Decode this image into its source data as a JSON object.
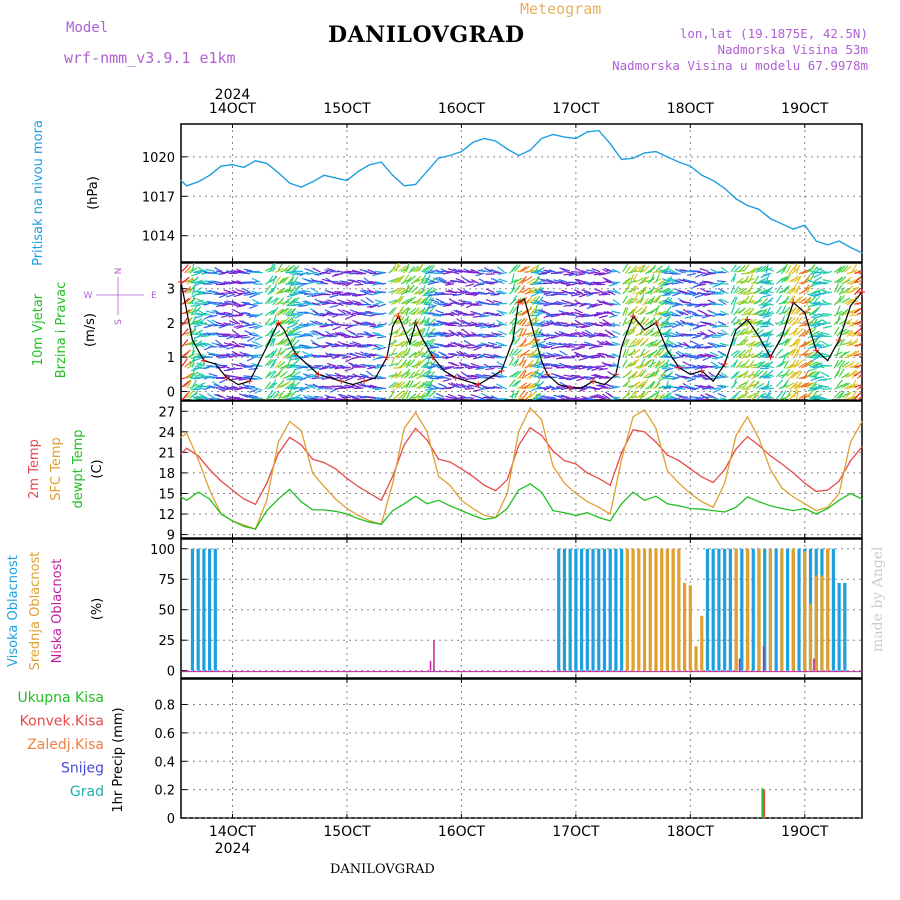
{
  "header": {
    "model_label": "Model",
    "model_name": "wrf-nmm_v3.9.1  e1km",
    "location": "DANILOVGRAD",
    "meteogram": "Meteogram",
    "coords": "lon,lat (19.1875E, 42.5N)",
    "elevation": "Nadmorska Visina 53m",
    "model_elevation": "Nadmorska Visina u modelu 67.9978m",
    "footer": "DANILOVGRAD",
    "watermark": "made by Angel",
    "year": "2024"
  },
  "colors": {
    "pressure": "#1e9ee0",
    "temp2m": "#e84a4a",
    "sfc": "#e0a030",
    "dewpt": "#22c022",
    "high_cloud": "#1ea0e0",
    "mid_cloud": "#e0a030",
    "low_cloud": "#c020a0",
    "precip_total": "#22c022",
    "precip_conv": "#e84a4a",
    "wind_speed": "#000000",
    "label_purple": "#b060d0",
    "label_orange": "#e8b060"
  },
  "chart_data": [
    {
      "id": "pressure",
      "type": "line",
      "ylabel_left": "Pritisak na nivou mora",
      "ylabel": "(hPa)",
      "yticks": [
        1014,
        1017,
        1020
      ],
      "ylim": [
        1012,
        1022.5
      ],
      "x_ticks": [
        "14OCT",
        "15OCT",
        "16OCT",
        "17OCT",
        "18OCT",
        "19OCT"
      ],
      "x_range_days": [
        13.55,
        19.5
      ],
      "series": [
        {
          "key": "pressure",
          "x": [
            13.55,
            13.6,
            13.7,
            13.8,
            13.9,
            14.0,
            14.1,
            14.2,
            14.3,
            14.4,
            14.5,
            14.6,
            14.7,
            14.8,
            14.9,
            15.0,
            15.1,
            15.2,
            15.3,
            15.4,
            15.5,
            15.6,
            15.7,
            15.8,
            15.9,
            16.0,
            16.1,
            16.2,
            16.3,
            16.4,
            16.5,
            16.6,
            16.7,
            16.8,
            16.9,
            17.0,
            17.1,
            17.2,
            17.3,
            17.4,
            17.5,
            17.6,
            17.7,
            17.8,
            17.9,
            18.0,
            18.1,
            18.2,
            18.3,
            18.4,
            18.5,
            18.6,
            18.7,
            18.8,
            18.9,
            19.0,
            19.1,
            19.2,
            19.3,
            19.4,
            19.5
          ],
          "y": [
            1018.2,
            1017.8,
            1018.1,
            1018.6,
            1019.3,
            1019.4,
            1019.2,
            1019.7,
            1019.5,
            1018.8,
            1018.0,
            1017.7,
            1018.1,
            1018.6,
            1018.4,
            1018.2,
            1018.9,
            1019.4,
            1019.6,
            1018.6,
            1017.8,
            1017.9,
            1018.9,
            1019.9,
            1020.1,
            1020.4,
            1021.1,
            1021.4,
            1021.2,
            1020.6,
            1020.1,
            1020.5,
            1021.4,
            1021.7,
            1021.5,
            1021.4,
            1021.9,
            1022.0,
            1021.0,
            1019.8,
            1019.9,
            1020.3,
            1020.4,
            1020.0,
            1019.6,
            1019.3,
            1018.6,
            1018.2,
            1017.6,
            1016.8,
            1016.3,
            1016.0,
            1015.3,
            1014.9,
            1014.5,
            1014.8,
            1013.6,
            1013.3,
            1013.6,
            1013.1,
            1012.7
          ]
        }
      ]
    },
    {
      "id": "wind",
      "type": "line",
      "ylabel_left": "10m Vjetar",
      "ylabel_left2": "Brzina i Pravac",
      "ylabel": "(m/s)",
      "compass": {
        "n": "N",
        "w": "W",
        "e": "E",
        "s": "S"
      },
      "yticks": [
        0,
        1,
        2,
        3
      ],
      "ylim": [
        -0.25,
        3.75
      ],
      "series": [
        {
          "key": "wind_speed",
          "x": [
            13.55,
            13.65,
            13.75,
            13.85,
            13.95,
            14.05,
            14.15,
            14.3,
            14.4,
            14.45,
            14.55,
            14.65,
            14.75,
            14.85,
            14.95,
            15.05,
            15.15,
            15.25,
            15.35,
            15.4,
            15.45,
            15.55,
            15.6,
            15.65,
            15.75,
            15.85,
            15.95,
            16.05,
            16.15,
            16.25,
            16.35,
            16.45,
            16.5,
            16.55,
            16.65,
            16.7,
            16.75,
            16.85,
            16.95,
            17.05,
            17.15,
            17.25,
            17.35,
            17.4,
            17.5,
            17.6,
            17.7,
            17.8,
            17.9,
            18.0,
            18.1,
            18.2,
            18.3,
            18.4,
            18.5,
            18.6,
            18.7,
            18.8,
            18.9,
            19.0,
            19.1,
            19.2,
            19.3,
            19.4,
            19.5
          ],
          "y": [
            3.2,
            1.5,
            0.9,
            0.8,
            0.4,
            0.2,
            0.3,
            1.3,
            2.0,
            1.8,
            1.1,
            0.8,
            0.5,
            0.4,
            0.3,
            0.2,
            0.3,
            0.4,
            1.0,
            1.9,
            2.2,
            1.4,
            2.0,
            1.6,
            1.0,
            0.6,
            0.4,
            0.3,
            0.2,
            0.4,
            0.6,
            1.5,
            2.6,
            2.7,
            1.5,
            0.9,
            0.5,
            0.2,
            0.1,
            0.1,
            0.3,
            0.2,
            0.5,
            1.3,
            2.2,
            1.8,
            2.0,
            1.2,
            0.7,
            0.5,
            0.6,
            0.3,
            0.8,
            1.8,
            2.1,
            1.6,
            1.0,
            1.6,
            2.6,
            2.3,
            1.2,
            0.9,
            1.5,
            2.5,
            2.9
          ]
        }
      ]
    },
    {
      "id": "temperature",
      "type": "line",
      "ylabel_left": "2m Temp",
      "ylabel_left2": "SFC Temp",
      "ylabel_left3": "dewpt Temp",
      "ylabel": "(C)",
      "yticks": [
        9,
        12,
        15,
        18,
        21,
        24,
        27
      ],
      "ylim": [
        8.5,
        28.5
      ],
      "series": [
        {
          "key": "temp2m",
          "x": [
            13.55,
            13.6,
            13.7,
            13.8,
            13.9,
            14.0,
            14.1,
            14.2,
            14.3,
            14.4,
            14.5,
            14.6,
            14.7,
            14.8,
            14.9,
            15.0,
            15.1,
            15.2,
            15.3,
            15.4,
            15.5,
            15.6,
            15.7,
            15.8,
            15.9,
            16.0,
            16.1,
            16.2,
            16.3,
            16.4,
            16.5,
            16.6,
            16.7,
            16.8,
            16.9,
            17.0,
            17.1,
            17.2,
            17.3,
            17.4,
            17.5,
            17.6,
            17.7,
            17.8,
            17.9,
            18.0,
            18.1,
            18.2,
            18.3,
            18.4,
            18.5,
            18.6,
            18.7,
            18.8,
            18.9,
            19.0,
            19.1,
            19.2,
            19.3,
            19.4,
            19.5
          ],
          "y": [
            20.8,
            21.6,
            20.5,
            18.5,
            16.8,
            15.5,
            14.2,
            13.4,
            16.5,
            20.8,
            23.2,
            22.1,
            20.0,
            19.5,
            18.6,
            17.2,
            16.0,
            15.0,
            14.0,
            17.5,
            22.1,
            24.5,
            22.8,
            20.0,
            19.6,
            18.6,
            17.5,
            16.2,
            15.4,
            17.0,
            22.0,
            24.6,
            23.5,
            21.2,
            19.8,
            19.3,
            18.0,
            17.2,
            16.2,
            21.0,
            24.3,
            24.0,
            22.5,
            20.6,
            19.8,
            18.6,
            17.4,
            16.6,
            18.5,
            21.5,
            23.3,
            22.0,
            20.5,
            19.3,
            18.0,
            16.5,
            15.3,
            15.5,
            16.8,
            19.8,
            21.8
          ]
        },
        {
          "key": "sfc",
          "x": [
            13.55,
            13.6,
            13.7,
            13.8,
            13.9,
            14.0,
            14.1,
            14.2,
            14.3,
            14.4,
            14.5,
            14.6,
            14.7,
            14.8,
            14.9,
            15.0,
            15.1,
            15.2,
            15.3,
            15.4,
            15.5,
            15.6,
            15.7,
            15.8,
            15.9,
            16.0,
            16.1,
            16.2,
            16.3,
            16.4,
            16.5,
            16.6,
            16.7,
            16.8,
            16.9,
            17.0,
            17.1,
            17.2,
            17.3,
            17.4,
            17.5,
            17.6,
            17.7,
            17.8,
            17.9,
            18.0,
            18.1,
            18.2,
            18.3,
            18.4,
            18.5,
            18.6,
            18.7,
            18.8,
            18.9,
            19.0,
            19.1,
            19.2,
            19.3,
            19.4,
            19.5
          ],
          "y": [
            23.2,
            23.8,
            20.0,
            15.5,
            12.0,
            11.0,
            10.4,
            9.8,
            14.0,
            22.5,
            25.5,
            24.2,
            18.0,
            16.0,
            14.2,
            12.8,
            11.8,
            11.0,
            10.5,
            16.5,
            24.5,
            26.8,
            24.0,
            17.5,
            16.2,
            14.0,
            12.8,
            11.8,
            11.5,
            15.0,
            24.0,
            27.5,
            25.8,
            19.0,
            16.5,
            15.0,
            13.8,
            13.0,
            12.0,
            20.0,
            26.2,
            27.2,
            24.5,
            18.3,
            16.5,
            15.0,
            13.8,
            13.0,
            16.5,
            23.5,
            26.2,
            23.0,
            18.5,
            15.8,
            14.5,
            13.5,
            12.5,
            13.0,
            15.0,
            22.5,
            25.5
          ]
        },
        {
          "key": "dewpt",
          "x": [
            13.55,
            13.6,
            13.7,
            13.8,
            13.9,
            14.0,
            14.1,
            14.2,
            14.3,
            14.4,
            14.5,
            14.6,
            14.7,
            14.8,
            14.9,
            15.0,
            15.1,
            15.2,
            15.3,
            15.4,
            15.5,
            15.6,
            15.7,
            15.8,
            15.9,
            16.0,
            16.1,
            16.2,
            16.3,
            16.4,
            16.5,
            16.6,
            16.7,
            16.8,
            16.9,
            17.0,
            17.1,
            17.2,
            17.3,
            17.4,
            17.5,
            17.6,
            17.7,
            17.8,
            17.9,
            18.0,
            18.1,
            18.2,
            18.3,
            18.4,
            18.5,
            18.6,
            18.7,
            18.8,
            18.9,
            19.0,
            19.1,
            19.2,
            19.3,
            19.4,
            19.5
          ],
          "y": [
            14.5,
            14.0,
            15.2,
            14.2,
            12.0,
            11.0,
            10.2,
            9.8,
            12.5,
            14.2,
            15.6,
            13.8,
            12.6,
            12.6,
            12.4,
            12.0,
            11.3,
            10.8,
            10.5,
            12.5,
            13.5,
            14.6,
            13.5,
            14.0,
            13.2,
            12.5,
            11.8,
            11.2,
            11.5,
            12.8,
            15.5,
            16.4,
            15.2,
            12.5,
            12.2,
            11.8,
            12.2,
            11.5,
            11.0,
            13.5,
            15.2,
            14.0,
            14.6,
            13.5,
            13.2,
            12.8,
            12.7,
            12.5,
            12.3,
            13.0,
            14.5,
            13.8,
            13.2,
            12.8,
            12.5,
            12.8,
            12.0,
            12.8,
            14.0,
            15.0,
            14.2
          ]
        }
      ]
    },
    {
      "id": "clouds",
      "type": "bar",
      "ylabel_left": "Visoka Oblacnost",
      "ylabel_left2": "Srednja Oblacnost",
      "ylabel_left3": "Niska Oblacnost",
      "ylabel": "(%)",
      "yticks": [
        0,
        25,
        50,
        75,
        100
      ],
      "ylim": [
        -6,
        108
      ],
      "series": [
        {
          "key": "high_cloud",
          "x": [
            13.65,
            13.7,
            13.75,
            13.8,
            13.85,
            16.85,
            16.9,
            16.95,
            17.0,
            17.05,
            17.1,
            17.15,
            17.2,
            17.25,
            17.3,
            17.35,
            17.4,
            18.15,
            18.2,
            18.25,
            18.3,
            18.35,
            18.4,
            18.45,
            18.5,
            18.55,
            18.6,
            18.65,
            18.7,
            18.75,
            18.8,
            18.85,
            18.9,
            18.95,
            19.0,
            19.05,
            19.1,
            19.15,
            19.2,
            19.25,
            19.3,
            19.35
          ],
          "y": [
            100,
            100,
            100,
            100,
            100,
            100,
            100,
            100,
            100,
            100,
            100,
            100,
            100,
            100,
            100,
            100,
            100,
            100,
            100,
            100,
            100,
            100,
            100,
            100,
            100,
            100,
            100,
            100,
            100,
            100,
            100,
            100,
            100,
            100,
            100,
            100,
            100,
            100,
            100,
            100,
            72,
            72
          ]
        },
        {
          "key": "mid_cloud",
          "x": [
            17.45,
            17.5,
            17.55,
            17.6,
            17.65,
            17.7,
            17.75,
            17.8,
            17.85,
            17.9,
            17.95,
            18.0,
            18.05,
            18.1,
            18.4,
            18.5,
            18.6,
            18.7,
            18.8,
            18.9,
            19.0,
            19.05,
            19.1,
            19.15,
            19.2
          ],
          "y": [
            100,
            100,
            100,
            100,
            100,
            100,
            100,
            100,
            100,
            100,
            72,
            70,
            20,
            45,
            100,
            100,
            100,
            100,
            100,
            100,
            98,
            55,
            78,
            78,
            100
          ]
        },
        {
          "key": "low_cloud",
          "x": [
            15.73,
            15.76,
            18.43,
            18.64,
            19.08
          ],
          "y": [
            8,
            25,
            10,
            20,
            10
          ]
        }
      ]
    },
    {
      "id": "precip",
      "type": "bar",
      "ylabel_left": "1hr Precip",
      "ylabel": "(mm)",
      "yticks": [
        0,
        0.2,
        0.4,
        0.6,
        0.8
      ],
      "ylim": [
        0,
        0.98
      ],
      "legend": [
        "Ukupna  Kisa",
        "Konvek.Kisa",
        "Zaledj.Kisa",
        "Snijeg",
        "Grad"
      ],
      "series": [
        {
          "key": "precip_total",
          "x": [
            18.63
          ],
          "y": [
            0.21
          ]
        },
        {
          "key": "precip_conv",
          "x": [
            18.645
          ],
          "y": [
            0.2
          ]
        }
      ]
    }
  ]
}
